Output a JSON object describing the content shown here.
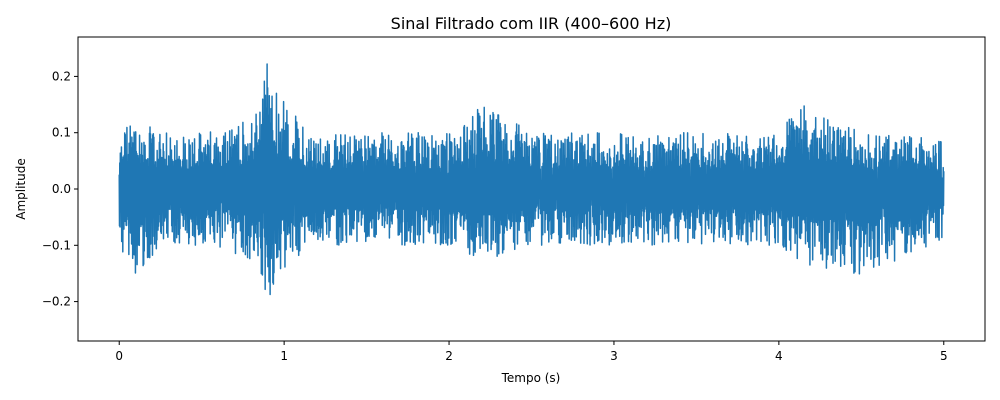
{
  "chart_data": {
    "type": "line",
    "title": "Sinal Filtrado com IIR (400–600 Hz)",
    "xlabel": "Tempo (s)",
    "ylabel": "Amplitude",
    "xlim": [
      -0.25,
      5.25
    ],
    "ylim": [
      -0.27,
      0.27
    ],
    "xticks": [
      0,
      1,
      2,
      3,
      4,
      5
    ],
    "xtick_labels": [
      "0",
      "1",
      "2",
      "3",
      "4",
      "5"
    ],
    "yticks": [
      -0.2,
      -0.1,
      0.0,
      0.1,
      0.2
    ],
    "ytick_labels": [
      "−0.2",
      "−0.1",
      "0.0",
      "0.1",
      "0.2"
    ],
    "grid": false,
    "series": [
      {
        "color": "#1f77b4",
        "x_range": [
          0,
          5
        ],
        "envelope": {
          "t": [
            0,
            0.02,
            0.1,
            0.3,
            0.5,
            0.7,
            0.82,
            0.88,
            0.9,
            0.92,
            0.96,
            1.0,
            1.05,
            1.15,
            1.3,
            1.6,
            2.0,
            2.2,
            2.5,
            3.0,
            3.5,
            4.0,
            4.1,
            4.5,
            5.0
          ],
          "max": [
            0.06,
            0.115,
            0.12,
            0.1,
            0.1,
            0.12,
            0.13,
            0.2,
            0.245,
            0.22,
            0.17,
            0.16,
            0.14,
            0.1,
            0.1,
            0.1,
            0.1,
            0.155,
            0.1,
            0.1,
            0.1,
            0.1,
            0.155,
            0.1,
            0.09
          ],
          "min": [
            -0.06,
            -0.13,
            -0.15,
            -0.1,
            -0.1,
            -0.12,
            -0.13,
            -0.2,
            -0.248,
            -0.21,
            -0.16,
            -0.15,
            -0.13,
            -0.1,
            -0.1,
            -0.1,
            -0.1,
            -0.13,
            -0.1,
            -0.1,
            -0.1,
            -0.1,
            -0.13,
            -0.155,
            -0.09
          ]
        }
      }
    ]
  }
}
